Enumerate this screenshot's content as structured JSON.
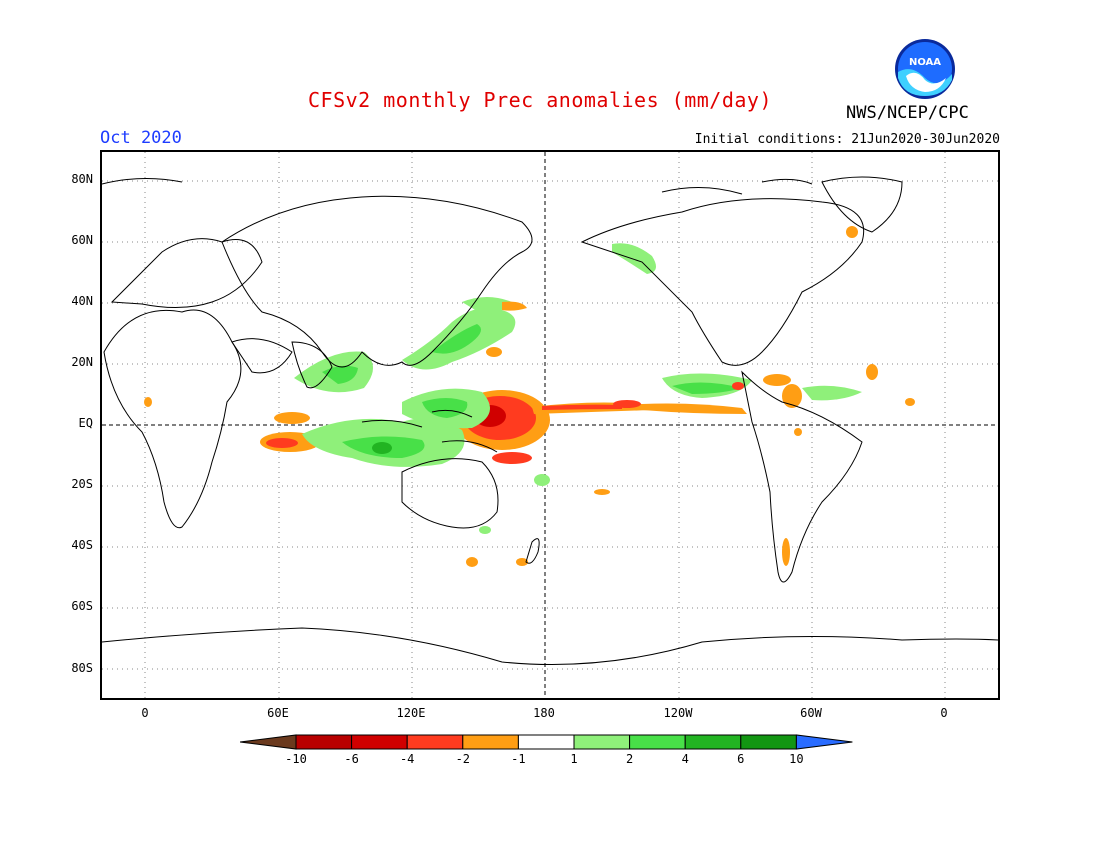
{
  "header": {
    "title": "CFSv2 monthly Prec anomalies (mm/day)",
    "org": "NWS/NCEP/CPC",
    "logo_text": "NOAA",
    "month": "Oct 2020",
    "initial_conditions": "Initial conditions: 21Jun2020-30Jun2020"
  },
  "axes": {
    "y_labels": [
      "80N",
      "60N",
      "40N",
      "20N",
      "EQ",
      "20S",
      "40S",
      "60S",
      "80S"
    ],
    "x_labels": [
      "0",
      "60E",
      "120E",
      "180",
      "120W",
      "60W",
      "0"
    ]
  },
  "colorbar": {
    "labels": [
      "-10",
      "-6",
      "-4",
      "-2",
      "-1",
      "1",
      "2",
      "4",
      "6",
      "10"
    ],
    "colors": [
      "#6b3a1e",
      "#b80000",
      "#d00000",
      "#ff3b1f",
      "#ff9e14",
      "#ffffff",
      "#8ff07a",
      "#48e048",
      "#22b422",
      "#129612",
      "#2a6cff"
    ]
  }
}
